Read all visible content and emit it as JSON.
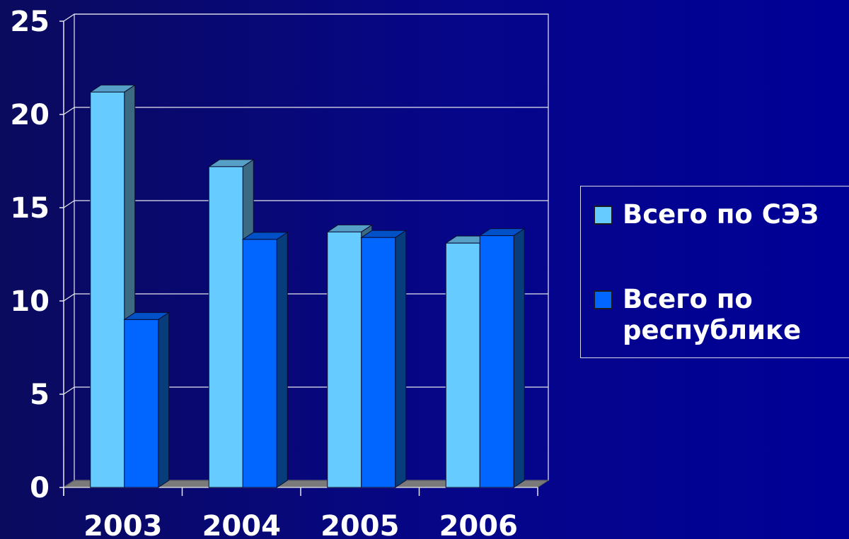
{
  "chart_data": {
    "type": "bar",
    "style": "3d-clustered-column",
    "categories": [
      "2003",
      "2004",
      "2005",
      "2006"
    ],
    "series": [
      {
        "name": "Всего по СЭЗ",
        "values": [
          21.2,
          17.2,
          13.7,
          13.1
        ],
        "color": "#66ccff"
      },
      {
        "name": "Всего по республике",
        "values": [
          9.0,
          13.3,
          13.4,
          13.5
        ],
        "color": "#0066ff"
      }
    ],
    "y_ticks": [
      "0",
      "5",
      "10",
      "15",
      "20",
      "25"
    ],
    "ylim": [
      0,
      25
    ],
    "grid": true,
    "legend_position": "right"
  },
  "legend": {
    "item_1": "Всего по СЭЗ",
    "item_2": "Всего по республике"
  },
  "colors": {
    "background": "#07078a",
    "axis": "#e6e6f0",
    "floor": "#7a7a7a",
    "series_1_front": "#66ccff",
    "series_1_top": "#56a0c8",
    "series_1_side": "#3c6a82",
    "series_2_front": "#0066ff",
    "series_2_top": "#0050c8",
    "series_2_side": "#063d7a"
  }
}
